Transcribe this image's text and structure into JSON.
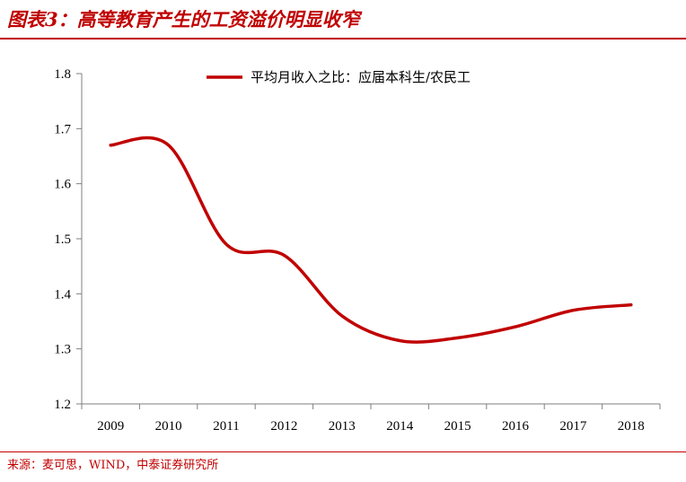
{
  "header": {
    "title": "图表3：高等教育产生的工资溢价明显收窄"
  },
  "footer": {
    "source": "来源：麦可思，WIND，中泰证券研究所"
  },
  "chart_data": {
    "type": "line",
    "title": "图表3：高等教育产生的工资溢价明显收窄",
    "xlabel": "",
    "ylabel": "",
    "x": [
      "2009",
      "2010",
      "2011",
      "2012",
      "2013",
      "2014",
      "2015",
      "2016",
      "2017",
      "2018"
    ],
    "series": [
      {
        "name": "平均月收入之比：应届本科生/农民工",
        "values": [
          1.67,
          1.67,
          1.49,
          1.47,
          1.36,
          1.315,
          1.32,
          1.34,
          1.37,
          1.38
        ],
        "color": "#c00000"
      }
    ],
    "ylim": [
      1.2,
      1.8
    ],
    "yticks": [
      "1.2",
      "1.3",
      "1.4",
      "1.5",
      "1.6",
      "1.7",
      "1.8"
    ],
    "grid": false,
    "legend_position": "top-center",
    "smooth": true
  }
}
